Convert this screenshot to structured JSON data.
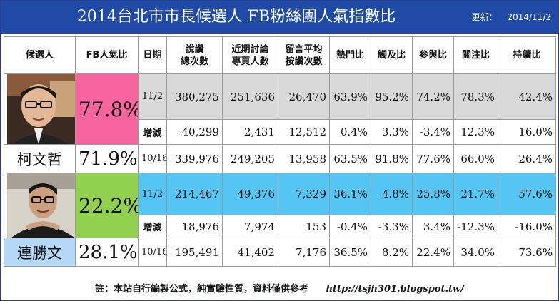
{
  "header": {
    "title": "2014台北市市長候選人 FB粉絲團人氣指數比",
    "update_label": "更新：",
    "update_date": "2014/11/2"
  },
  "columns": [
    "候選人",
    "FB人氣比",
    "日期",
    "說讚\n總次數",
    "近期討論\n專頁人數",
    "留言平均\n按讚次數",
    "熱門比",
    "觸及比",
    "參與比",
    "關注比",
    "持續比"
  ],
  "candidates": [
    {
      "name": "柯文哲",
      "fb_ratio_current": "77.8%",
      "fb_ratio_previous": "71.9%",
      "rows": [
        {
          "date": "11/2",
          "likes": "380,275",
          "talking": "251,636",
          "avg_comment_likes": "26,470",
          "hot": "63.9%",
          "reach": "95.2%",
          "engage": "74.2%",
          "attention": "78.3%",
          "sustain": "42.4%"
        },
        {
          "date": "增減",
          "likes": "40,299",
          "talking": "2,431",
          "avg_comment_likes": "12,512",
          "hot": "0.4%",
          "reach": "3.3%",
          "engage": "-3.4%",
          "attention": "12.3%",
          "sustain": "16.0%"
        },
        {
          "date": "10/16",
          "likes": "339,976",
          "talking": "249,205",
          "avg_comment_likes": "13,958",
          "hot": "63.5%",
          "reach": "91.8%",
          "engage": "77.6%",
          "attention": "66.0%",
          "sustain": "26.4%"
        }
      ]
    },
    {
      "name": "連勝文",
      "fb_ratio_current": "22.2%",
      "fb_ratio_previous": "28.1%",
      "rows": [
        {
          "date": "11/2",
          "likes": "214,467",
          "talking": "49,376",
          "avg_comment_likes": "7,329",
          "hot": "36.1%",
          "reach": "4.8%",
          "engage": "25.8%",
          "attention": "21.7%",
          "sustain": "57.6%"
        },
        {
          "date": "增減",
          "likes": "18,976",
          "talking": "7,974",
          "avg_comment_likes": "153",
          "hot": "-0.4%",
          "reach": "-3.3%",
          "engage": "3.4%",
          "attention": "-12.3%",
          "sustain": "-16.0%"
        },
        {
          "date": "10/16",
          "likes": "195,491",
          "talking": "41,402",
          "avg_comment_likes": "7,176",
          "hot": "36.5%",
          "reach": "8.2%",
          "engage": "22.4%",
          "attention": "34.0%",
          "sustain": "73.6%"
        }
      ]
    }
  ],
  "footer": {
    "note": "註：本站自行編製公式，純實驗性質，資料僅供參考",
    "url": "http://tsjh301.blogspot.tw/"
  },
  "colors": {
    "title_bar": "#1f4aa5",
    "ko_highlight": "#f7649e",
    "lien_highlight": "#92d050",
    "lien_row": "#55c5f4",
    "ko_row": "#d8d8d8",
    "negative": "#d10000"
  }
}
